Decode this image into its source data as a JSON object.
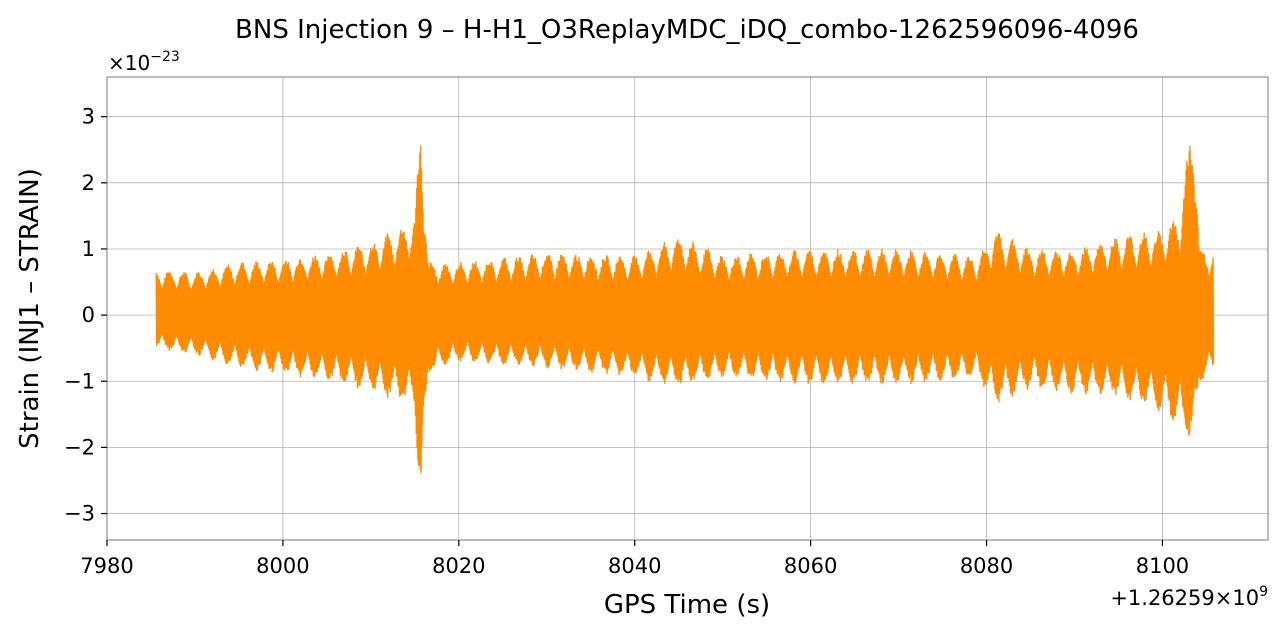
{
  "chart_data": {
    "type": "line",
    "title": "BNS Injection 9 – H-H1_O3ReplayMDC_iDQ_combo-1262596096-4096",
    "xlabel": "GPS Time (s)",
    "ylabel": "Strain (INJ1 – STRAIN)",
    "x_offset_label": "+1.26259×10",
    "x_offset_exponent": "9",
    "y_scale_label": "×10",
    "y_scale_exponent": "−23",
    "xlim": [
      7980,
      8112
    ],
    "ylim": [
      -3.4,
      3.6
    ],
    "xticks": [
      7980,
      8000,
      8020,
      8040,
      8060,
      8080,
      8100
    ],
    "xtick_labels": [
      "7980",
      "8000",
      "8020",
      "8040",
      "8060",
      "8080",
      "8100"
    ],
    "yticks": [
      -3,
      -2,
      -1,
      0,
      1,
      2,
      3
    ],
    "ytick_labels": [
      "−3",
      "−2",
      "−1",
      "0",
      "1",
      "2",
      "3"
    ],
    "grid": true,
    "series": [
      {
        "name": "",
        "color": "#ff8c00",
        "x_range": [
          7985.6,
          8105.8
        ],
        "envelope_x": [
          7985.6,
          7990,
          7995,
          8000,
          8005,
          8010,
          8013,
          8015.0,
          8015.7,
          8016.5,
          8020,
          8030,
          8040,
          8045,
          8050,
          8060,
          8070,
          8079,
          8081,
          8085,
          8090,
          8095,
          8100,
          8102,
          8103.6,
          8104.2,
          8105.8
        ],
        "envelope_upper": [
          0.7,
          0.65,
          0.8,
          0.85,
          0.95,
          1.1,
          1.3,
          1.5,
          3.2,
          0.8,
          0.8,
          0.95,
          0.9,
          1.2,
          0.9,
          1.0,
          1.0,
          0.9,
          1.3,
          1.0,
          1.0,
          1.2,
          1.3,
          1.6,
          3.27,
          1.0,
          1.0
        ],
        "envelope_lower": [
          -0.5,
          -0.6,
          -0.8,
          -0.9,
          -1.0,
          -1.15,
          -1.3,
          -1.4,
          -3.1,
          -0.9,
          -0.7,
          -0.8,
          -0.95,
          -1.1,
          -0.95,
          -1.05,
          -1.05,
          -0.95,
          -1.35,
          -1.1,
          -1.2,
          -1.25,
          -1.5,
          -1.7,
          -2.0,
          -1.0,
          -0.9
        ]
      }
    ]
  }
}
